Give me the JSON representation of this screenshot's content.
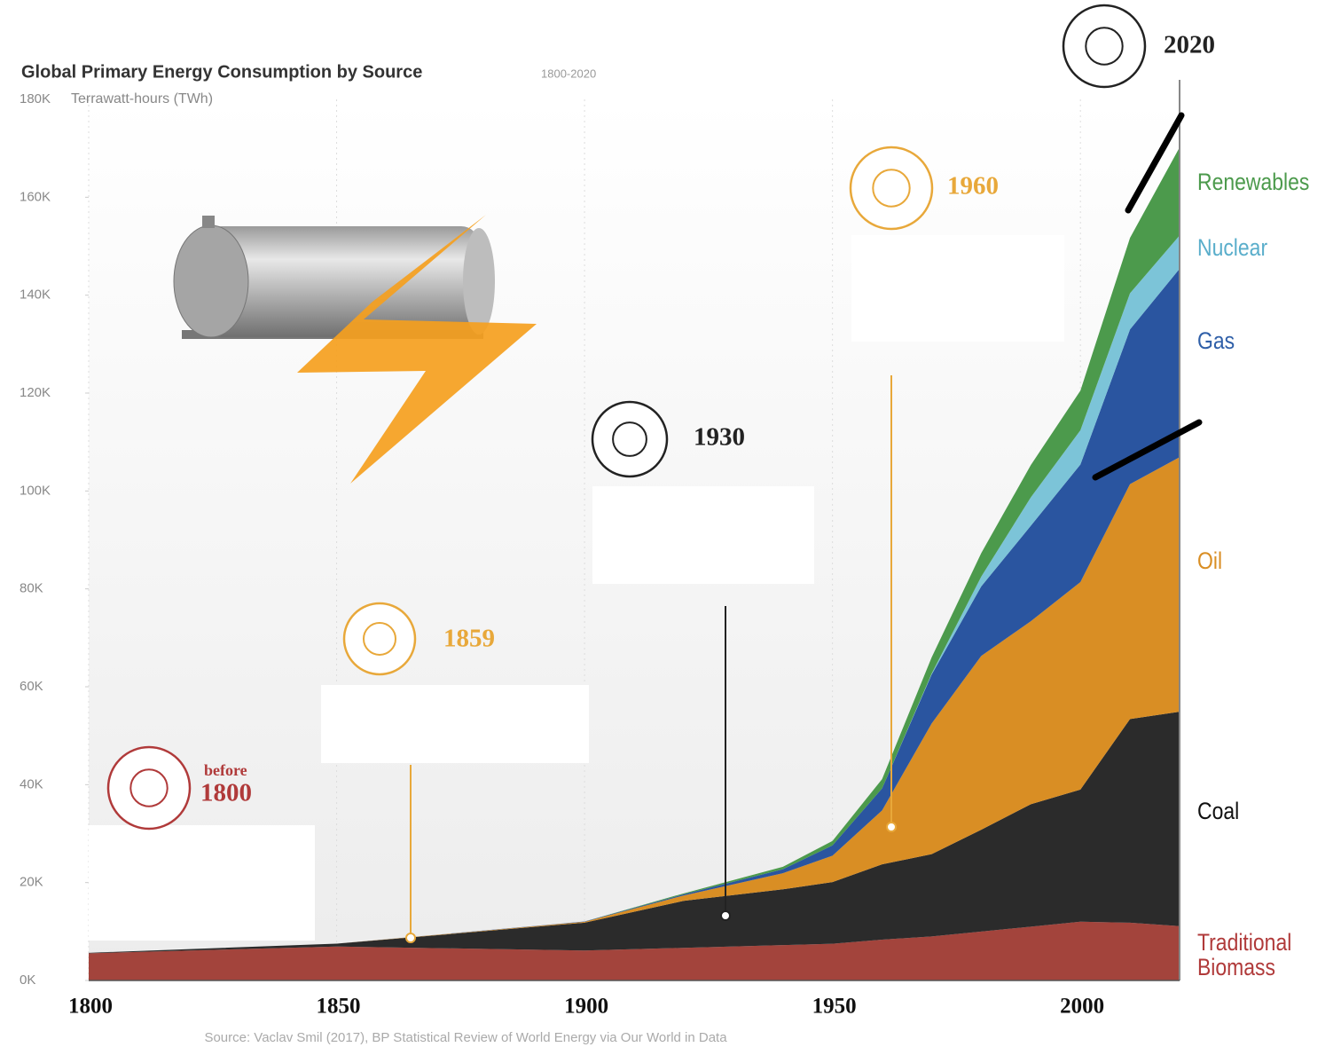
{
  "chart_data": {
    "type": "stacked-area",
    "title": "Global Primary Energy Consumption by Source",
    "subtitle": "1800-2020",
    "y_label": "Terrawatt-hours (TWh)",
    "source": "Source: Vaclav Smil (2017), BP Statistical Review of World Energy via Our World in Data",
    "x": [
      1800,
      1850,
      1900,
      1920,
      1940,
      1950,
      1960,
      1970,
      1980,
      1990,
      2000,
      2010,
      2020
    ],
    "xlim": [
      1800,
      2020
    ],
    "xticks": [
      1800,
      1850,
      1900,
      1950,
      2000
    ],
    "ylim": [
      0,
      180000
    ],
    "yticks": [
      {
        "value": 0,
        "label": "0K"
      },
      {
        "value": 20000,
        "label": "20K"
      },
      {
        "value": 40000,
        "label": "40K"
      },
      {
        "value": 60000,
        "label": "60K"
      },
      {
        "value": 80000,
        "label": "80K"
      },
      {
        "value": 100000,
        "label": "100K"
      },
      {
        "value": 120000,
        "label": "120K"
      },
      {
        "value": 140000,
        "label": "140K"
      },
      {
        "value": 160000,
        "label": "160K"
      },
      {
        "value": 180000,
        "label": "180K"
      }
    ],
    "xgrid": true,
    "series": [
      {
        "name": "Traditional Biomass",
        "color": "#a3443c",
        "label_color": "#b03a3a",
        "values": [
          5556,
          6944,
          6111,
          6667,
          7222,
          7500,
          8333,
          9000,
          10000,
          11000,
          12000,
          11800,
          11100
        ]
      },
      {
        "name": "Coal",
        "color": "#2b2b2b",
        "label_color": "#111111",
        "values": [
          97,
          570,
          5700,
          9600,
          11400,
          12600,
          15400,
          16800,
          20800,
          25000,
          27000,
          41600,
          43800
        ]
      },
      {
        "name": "Oil",
        "color": "#d98e24",
        "label_color": "#d98e24",
        "values": [
          0,
          0,
          180,
          1100,
          3300,
          5400,
          11000,
          26700,
          35500,
          37400,
          42400,
          48000,
          52000
        ]
      },
      {
        "name": "Gas",
        "color": "#2a55a0",
        "label_color": "#2f5fa8",
        "values": [
          0,
          0,
          60,
          230,
          800,
          2100,
          4500,
          10000,
          14200,
          19500,
          24000,
          31600,
          38500
        ]
      },
      {
        "name": "Nuclear",
        "color": "#7cc4d8",
        "label_color": "#5aaecb",
        "values": [
          0,
          0,
          0,
          0,
          0,
          0,
          0,
          200,
          2000,
          5800,
          7000,
          7400,
          6800
        ]
      },
      {
        "name": "Renewables",
        "color": "#4c9a4c",
        "label_color": "#4c9a4c",
        "values": [
          0,
          0,
          0,
          200,
          500,
          900,
          1900,
          3300,
          4800,
          6600,
          8100,
          11300,
          18000
        ]
      }
    ],
    "annotations": [
      {
        "prefix": "before",
        "label": "1800",
        "color": "#b03a3a"
      },
      {
        "label": "1859",
        "color": "#e8a83a"
      },
      {
        "label": "1930",
        "color": "#222222"
      },
      {
        "label": "1960",
        "color": "#e8a83a"
      },
      {
        "label": "2020",
        "color": "#222222"
      }
    ]
  }
}
